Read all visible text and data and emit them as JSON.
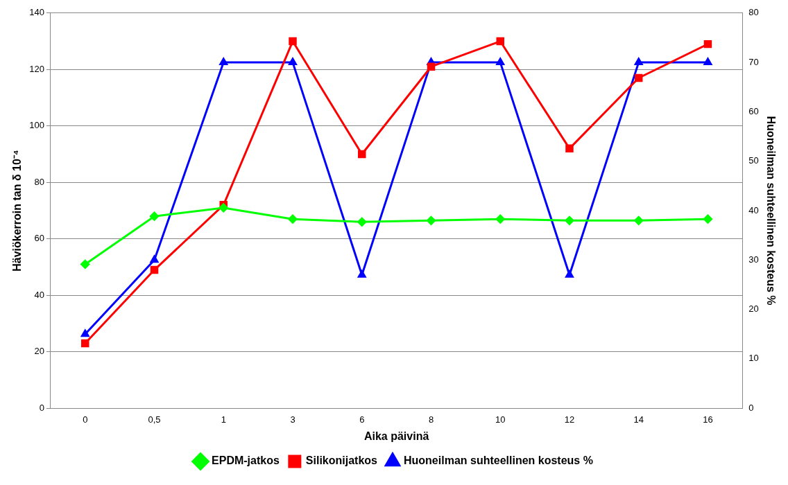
{
  "chart_data": {
    "type": "line",
    "xlabel": "Aika päivinä",
    "ylabel": "Häviökerroin tan δ 10⁻⁴",
    "y2label": "Huoneilman suhteellinen kosteus %",
    "categories": [
      "0",
      "0,5",
      "1",
      "3",
      "6",
      "8",
      "10",
      "12",
      "14",
      "16"
    ],
    "series": [
      {
        "name": "EPDM-jatkos",
        "color": "#00ff00",
        "marker": "diamond",
        "values": [
          51,
          68,
          71,
          67,
          66,
          66.5,
          67,
          66.5,
          66.5,
          67
        ]
      },
      {
        "name": "Silikonijatkos",
        "color": "#ff0000",
        "marker": "square",
        "values": [
          23,
          49,
          72,
          130,
          90,
          121,
          130,
          92,
          117,
          129
        ]
      },
      {
        "name": "Huoneilman suhteellinen kosteus %",
        "color": "#0000ff",
        "marker": "triangle",
        "axis": "y2",
        "values": [
          15,
          30,
          70,
          70,
          27,
          70,
          70,
          27,
          70,
          70
        ]
      }
    ],
    "ylim": [
      0,
      140
    ],
    "yticks": [
      0,
      20,
      40,
      60,
      80,
      100,
      120,
      140
    ],
    "y2lim": [
      0,
      80
    ],
    "y2ticks": [
      0,
      10,
      20,
      30,
      40,
      50,
      60,
      70,
      80
    ],
    "grid": "y",
    "legend": "bottom",
    "line_style": "solid"
  }
}
